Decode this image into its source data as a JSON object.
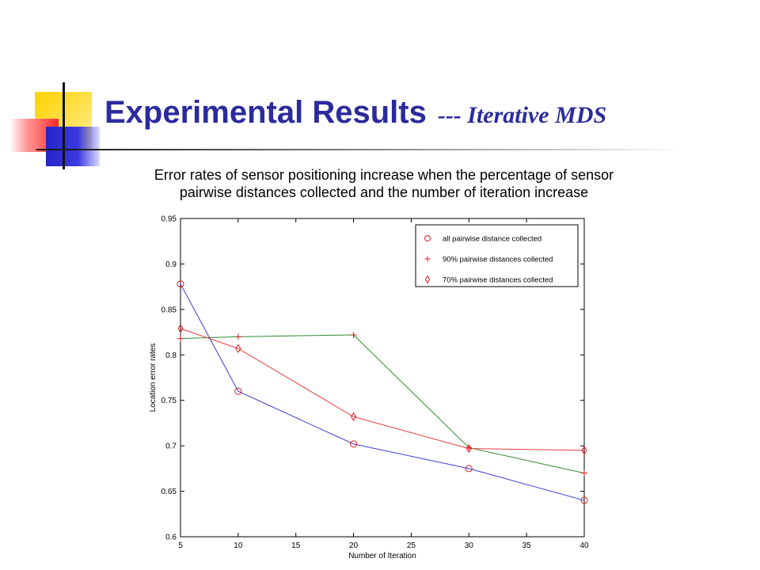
{
  "slide": {
    "title": "Experimental Results",
    "title_suffix": "--- Iterative MDS",
    "subtitle_line1": "Error rates of sensor positioning increase when the percentage of sensor",
    "subtitle_line2": "pairwise distances collected and the number of iteration increase"
  },
  "colors": {
    "title": "#2b2b9e",
    "decor_yellow": "#ffd200",
    "decor_red": "#ff2a2a",
    "decor_blue": "#2424c8"
  },
  "chart_data": {
    "type": "line",
    "title": "",
    "xlabel": "Number of Iteration",
    "ylabel": "Location error rates",
    "xlim": [
      5,
      40
    ],
    "ylim": [
      0.6,
      0.95
    ],
    "xticks": [
      5,
      10,
      15,
      20,
      25,
      30,
      35,
      40
    ],
    "yticks": [
      0.6,
      0.65,
      0.7,
      0.75,
      0.8,
      0.85,
      0.9,
      0.95
    ],
    "grid": false,
    "legend_position": "top-right",
    "series": [
      {
        "name": "all pairwise distance collected",
        "marker": "circle",
        "color": "#3b3bd6",
        "x": [
          5,
          10,
          20,
          30,
          40
        ],
        "y": [
          0.878,
          0.76,
          0.702,
          0.675,
          0.64
        ]
      },
      {
        "name": "90% pairwise distances collected",
        "marker": "plus",
        "color": "#2e8b2e",
        "x": [
          5,
          10,
          20,
          30,
          40
        ],
        "y": [
          0.818,
          0.82,
          0.822,
          0.698,
          0.67
        ]
      },
      {
        "name": "70% pairwise distances collected",
        "marker": "diamond",
        "color": "#e83c3c",
        "x": [
          5,
          10,
          20,
          30,
          40
        ],
        "y": [
          0.829,
          0.807,
          0.732,
          0.697,
          0.695
        ]
      }
    ]
  }
}
